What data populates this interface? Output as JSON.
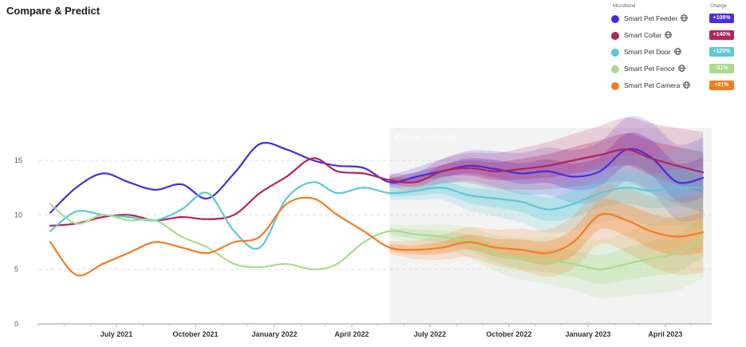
{
  "page": {
    "title": "Compare & Predict"
  },
  "legend": {
    "header_left": "Microtrend",
    "header_right": "Change",
    "items": [
      {
        "label": "Smart Pet Feeder",
        "change": "+108%",
        "color": "#4B2BE0",
        "badge_color": "#4B2BE0"
      },
      {
        "label": "Smart Collar",
        "change": "+140%",
        "color": "#B0245A",
        "badge_color": "#B0245A"
      },
      {
        "label": "Smart Pet Door",
        "change": "+120%",
        "color": "#5BC8D6",
        "badge_color": "#5BC8D6"
      },
      {
        "label": "Smart Pet Fence",
        "change": "-11%",
        "color": "#A8DC8C",
        "badge_color": "#A8DC8C"
      },
      {
        "label": "Smart Pet Camera",
        "change": "+21%",
        "color": "#F47C20",
        "badge_color": "#F47C20"
      }
    ]
  },
  "chart_data": {
    "type": "line",
    "title": "",
    "xlabel": "",
    "ylabel": "",
    "ylim": [
      0,
      18
    ],
    "y_ticks": [
      0,
      5,
      10,
      15
    ],
    "x_ticks": [
      "July 2021",
      "October 2021",
      "January 2022",
      "April 2022",
      "July 2022",
      "October 2022",
      "January 2023",
      "April 2023"
    ],
    "x": [
      "2021-04-15",
      "2021-05-15",
      "2021-06-15",
      "2021-07-15",
      "2021-08-15",
      "2021-09-15",
      "2021-10-15",
      "2021-11-15",
      "2021-12-15",
      "2022-01-15",
      "2022-02-15",
      "2022-03-15",
      "2022-04-15",
      "2022-05-15",
      "2022-06-15",
      "2022-07-15",
      "2022-08-15",
      "2022-09-15",
      "2022-10-15",
      "2022-11-15",
      "2022-12-15",
      "2023-01-15",
      "2023-02-15",
      "2023-03-15",
      "2023-04-15",
      "2023-05-15"
    ],
    "forecast_start": "2022-05-15",
    "annotation": "Future estimate",
    "grid": "horizontal dashed",
    "series": [
      {
        "name": "Smart Pet Feeder",
        "color": "#4B2BE0",
        "values": [
          10.2,
          12.5,
          13.8,
          13.0,
          12.3,
          12.8,
          11.5,
          13.8,
          16.5,
          16.0,
          15.0,
          14.5,
          14.3,
          13.0,
          13.5,
          14.0,
          14.5,
          14.2,
          13.8,
          14.0,
          13.5,
          14.0,
          16.0,
          15.3,
          13.0,
          13.4
        ]
      },
      {
        "name": "Smart Collar",
        "color": "#B0245A",
        "values": [
          9.0,
          9.2,
          9.8,
          10.0,
          9.5,
          9.8,
          9.6,
          10.0,
          12.0,
          13.5,
          15.2,
          14.0,
          13.8,
          13.2,
          13.0,
          14.0,
          14.3,
          14.0,
          14.2,
          14.5,
          15.0,
          15.5,
          16.0,
          15.2,
          14.5,
          13.9
        ]
      },
      {
        "name": "Smart Pet Door",
        "color": "#5BC8D6",
        "values": [
          8.5,
          10.3,
          10.0,
          9.8,
          9.5,
          10.5,
          12.0,
          8.5,
          7.0,
          11.5,
          13.0,
          12.0,
          12.5,
          12.0,
          12.2,
          12.5,
          11.8,
          11.5,
          11.2,
          10.5,
          11.0,
          12.0,
          12.5,
          12.2,
          12.5,
          12.5
        ]
      },
      {
        "name": "Smart Pet Fence",
        "color": "#A8DC8C",
        "values": [
          11.0,
          9.2,
          10.0,
          9.5,
          9.5,
          8.0,
          7.0,
          5.5,
          5.2,
          5.5,
          5.0,
          5.5,
          7.5,
          8.5,
          8.2,
          8.0,
          7.5,
          6.5,
          6.0,
          5.8,
          5.5,
          5.0,
          5.5,
          6.0,
          6.5,
          8.0
        ]
      },
      {
        "name": "Smart Pet Camera",
        "color": "#F47C20",
        "values": [
          7.5,
          4.5,
          5.5,
          6.5,
          7.5,
          7.0,
          6.5,
          7.5,
          8.0,
          11.0,
          11.5,
          10.0,
          8.5,
          7.0,
          6.8,
          7.0,
          7.5,
          7.0,
          6.8,
          6.5,
          7.5,
          10.0,
          9.5,
          8.5,
          8.0,
          8.4
        ]
      }
    ]
  }
}
